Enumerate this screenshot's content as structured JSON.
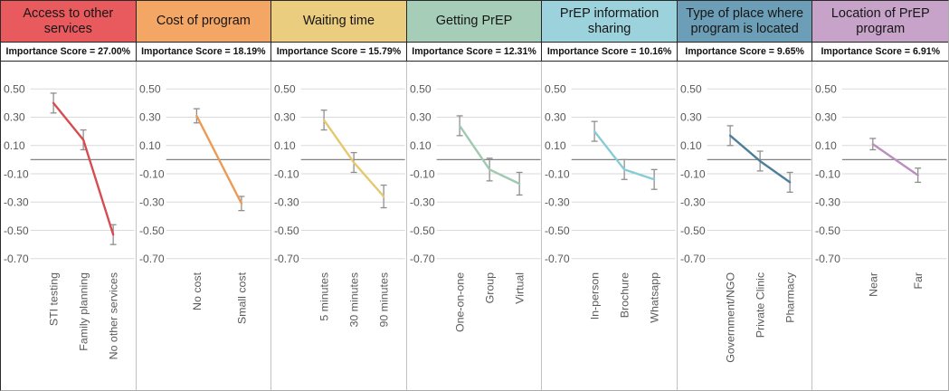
{
  "chart_data": {
    "type": "line",
    "description": "Seven-panel conjoint analysis chart of PrEP program attributes; each panel shows part-worth utilities with error bars per attribute level",
    "ylim": [
      -0.7,
      0.5
    ],
    "yticks": [
      0.5,
      0.3,
      0.1,
      -0.1,
      -0.3,
      -0.5,
      -0.7
    ],
    "ytick_labels": [
      "0.50",
      "0.30",
      "0.10",
      "-0.10",
      "-0.30",
      "-0.50",
      "-0.70"
    ],
    "grid": true,
    "error_bars": true,
    "error_bar_color": "#8f8f8f",
    "panels": [
      {
        "title": "Access to other services",
        "importance_label": "Importance Score = 27.00%",
        "header_color": "#e85a5e",
        "line_color": "#d84b50",
        "categories": [
          "STI testing",
          "Family planning",
          "No other services"
        ],
        "values": [
          0.4,
          0.14,
          -0.53
        ],
        "ci": [
          0.07,
          0.07,
          0.07
        ]
      },
      {
        "title": "Cost of program",
        "importance_label": "Importance Score = 18.19%",
        "header_color": "#f4a765",
        "line_color": "#eb9b56",
        "categories": [
          "No cost",
          "Small cost"
        ],
        "values": [
          0.31,
          -0.31
        ],
        "ci": [
          0.05,
          0.05
        ]
      },
      {
        "title": "Waiting time",
        "importance_label": "Importance Score = 15.79%",
        "header_color": "#eacd7e",
        "line_color": "#e6c96f",
        "categories": [
          "5 minutes",
          "30 minutes",
          "90 minutes"
        ],
        "values": [
          0.28,
          -0.02,
          -0.26
        ],
        "ci": [
          0.07,
          0.07,
          0.08
        ]
      },
      {
        "title": "Getting PrEP",
        "importance_label": "Importance Score = 12.31%",
        "header_color": "#a6cdb7",
        "line_color": "#9fc9b1",
        "categories": [
          "One-on-one",
          "Group",
          "Virtual"
        ],
        "values": [
          0.24,
          -0.07,
          -0.17
        ],
        "ci": [
          0.07,
          0.08,
          0.08
        ]
      },
      {
        "title": "PrEP information sharing",
        "importance_label": "Importance Score = 10.16%",
        "header_color": "#9bd2db",
        "line_color": "#8acbd8",
        "categories": [
          "In-person",
          "Brochure",
          "Whatsapp"
        ],
        "values": [
          0.2,
          -0.07,
          -0.14
        ],
        "ci": [
          0.07,
          0.07,
          0.07
        ]
      },
      {
        "title": "Type of place where program is located",
        "importance_label": "Importance Score = 9.65%",
        "header_color": "#6c9fb7",
        "line_color": "#4d7f99",
        "categories": [
          "Government/NGO",
          "Private Clinic",
          "Pharmacy"
        ],
        "values": [
          0.17,
          -0.01,
          -0.16
        ],
        "ci": [
          0.07,
          0.07,
          0.07
        ]
      },
      {
        "title": "Location of PrEP program",
        "importance_label": "Importance Score = 6.91%",
        "header_color": "#c7a3c9",
        "line_color": "#b990bd",
        "categories": [
          "Near",
          "Far"
        ],
        "values": [
          0.11,
          -0.11
        ],
        "ci": [
          0.04,
          0.05
        ]
      }
    ]
  }
}
